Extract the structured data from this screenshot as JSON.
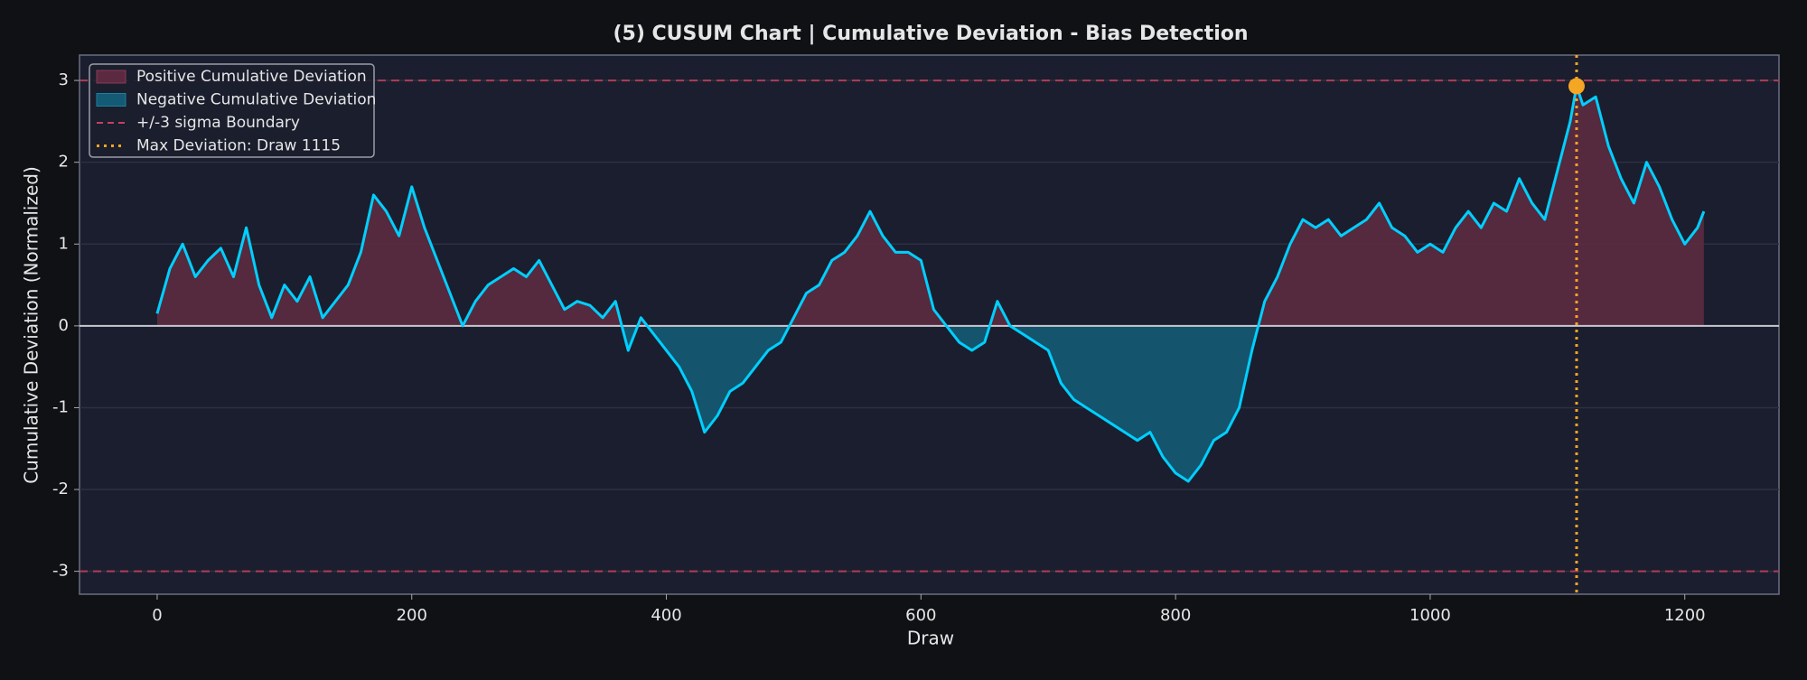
{
  "chart_data": {
    "type": "line",
    "title": "(5) CUSUM Chart  |  Cumulative Deviation - Bias Detection",
    "xlabel": "Draw",
    "ylabel": "Cumulative Deviation (Normalized)",
    "x": [
      0,
      10,
      20,
      30,
      40,
      50,
      60,
      70,
      80,
      90,
      100,
      110,
      120,
      130,
      140,
      150,
      160,
      170,
      180,
      190,
      200,
      210,
      220,
      230,
      240,
      250,
      260,
      270,
      280,
      290,
      300,
      310,
      320,
      330,
      340,
      350,
      360,
      370,
      380,
      390,
      400,
      410,
      420,
      430,
      440,
      450,
      460,
      470,
      480,
      490,
      500,
      510,
      520,
      530,
      540,
      550,
      560,
      570,
      580,
      590,
      600,
      610,
      620,
      630,
      640,
      650,
      660,
      670,
      680,
      690,
      700,
      710,
      720,
      730,
      740,
      750,
      760,
      770,
      780,
      790,
      800,
      810,
      820,
      830,
      840,
      850,
      860,
      870,
      880,
      890,
      900,
      910,
      920,
      930,
      940,
      950,
      960,
      970,
      980,
      990,
      1000,
      1010,
      1020,
      1030,
      1040,
      1050,
      1060,
      1070,
      1080,
      1090,
      1100,
      1110,
      1115,
      1120,
      1130,
      1140,
      1150,
      1160,
      1170,
      1180,
      1190,
      1200,
      1210,
      1215
    ],
    "values": [
      0.15,
      0.7,
      1.0,
      0.6,
      0.8,
      0.95,
      0.6,
      1.2,
      0.5,
      0.1,
      0.5,
      0.3,
      0.6,
      0.1,
      0.3,
      0.5,
      0.9,
      1.6,
      1.4,
      1.1,
      1.7,
      1.2,
      0.8,
      0.4,
      0.0,
      0.3,
      0.5,
      0.6,
      0.7,
      0.6,
      0.8,
      0.5,
      0.2,
      0.3,
      0.25,
      0.1,
      0.3,
      -0.3,
      0.1,
      -0.1,
      -0.3,
      -0.5,
      -0.8,
      -1.3,
      -1.1,
      -0.8,
      -0.7,
      -0.5,
      -0.3,
      -0.2,
      0.1,
      0.4,
      0.5,
      0.8,
      0.9,
      1.1,
      1.4,
      1.1,
      0.9,
      0.9,
      0.8,
      0.2,
      0.0,
      -0.2,
      -0.3,
      -0.2,
      0.3,
      0.0,
      -0.1,
      -0.2,
      -0.3,
      -0.7,
      -0.9,
      -1.0,
      -1.1,
      -1.2,
      -1.3,
      -1.4,
      -1.3,
      -1.6,
      -1.8,
      -1.9,
      -1.7,
      -1.4,
      -1.3,
      -1.0,
      -0.3,
      0.3,
      0.6,
      1.0,
      1.3,
      1.2,
      1.3,
      1.1,
      1.2,
      1.3,
      1.5,
      1.2,
      1.1,
      0.9,
      1.0,
      0.9,
      1.2,
      1.4,
      1.2,
      1.5,
      1.4,
      1.8,
      1.5,
      1.3,
      1.9,
      2.5,
      2.93,
      2.7,
      2.8,
      2.2,
      1.8,
      1.5,
      2.0,
      1.7,
      1.3,
      1.0,
      1.2,
      1.4
    ],
    "line_color": "#00cfff",
    "baseline": 0,
    "fills": [
      {
        "name": "Positive Cumulative Deviation",
        "color": "#5c2a40"
      },
      {
        "name": "Negative Cumulative Deviation",
        "color": "#145a74"
      }
    ],
    "boundary": {
      "name": "+/-3 sigma Boundary",
      "color": "#c8405e",
      "values": [
        3,
        -3
      ]
    },
    "max_marker": {
      "name": "Max Deviation: Draw 1115",
      "color": "#f5a623",
      "x": 1115,
      "y": 2.93
    },
    "xlim": [
      -61,
      1274
    ],
    "ylim": [
      -3.28,
      3.31
    ],
    "xticks": [
      0,
      200,
      400,
      600,
      800,
      1000,
      1200
    ],
    "yticks": [
      -3,
      -2,
      -1,
      0,
      1,
      2,
      3
    ],
    "grid": true,
    "legend": "upper left"
  }
}
